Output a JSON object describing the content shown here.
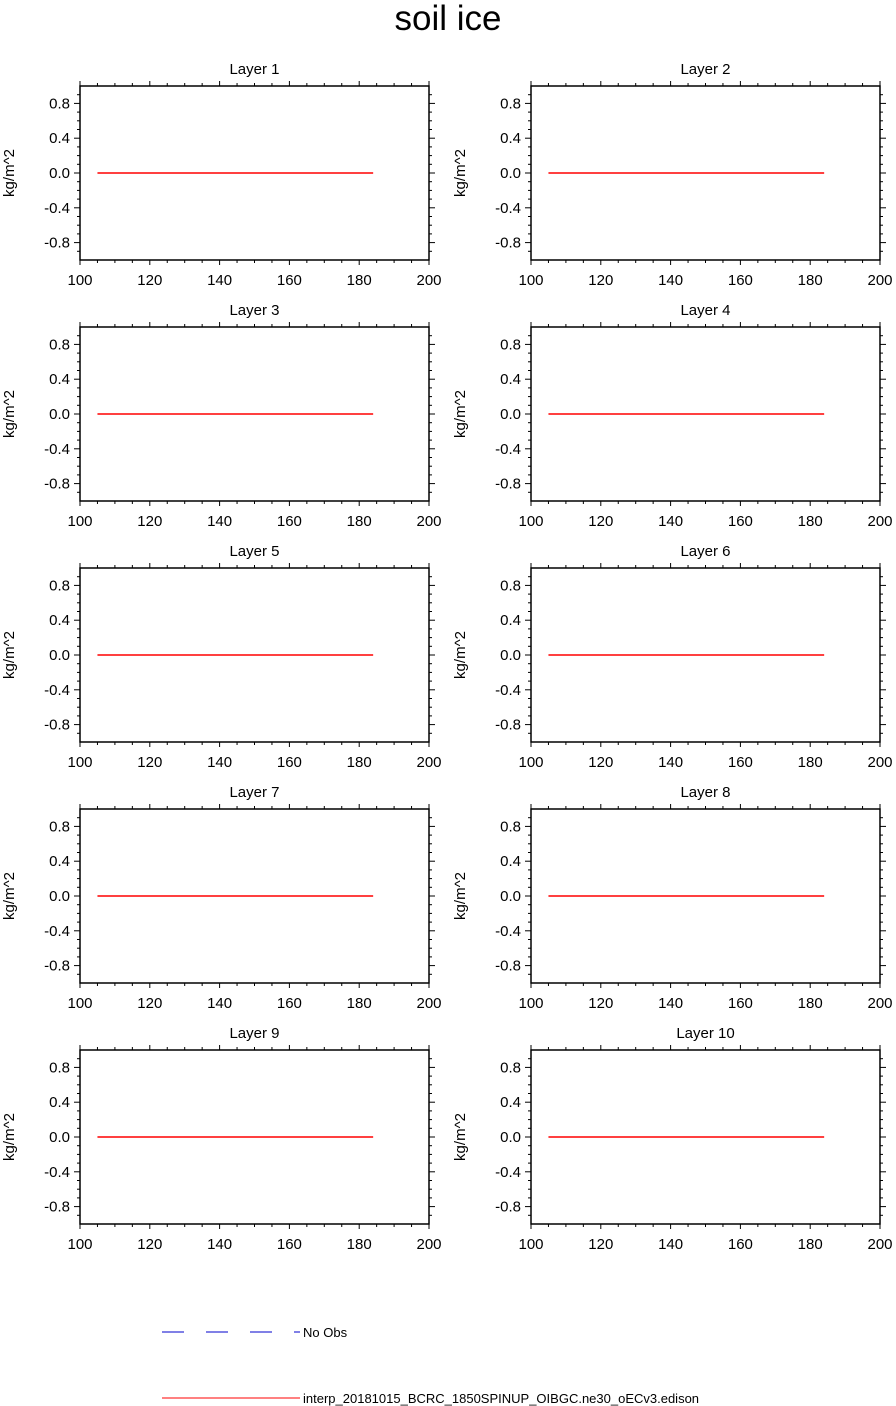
{
  "title": "soil ice",
  "colors": {
    "model_line": "#ff0000",
    "obs_line": "#0000cc",
    "axis": "#000000"
  },
  "chart_data": [
    {
      "type": "line",
      "title": "Layer 1",
      "ylabel": "kg/m^2",
      "xlim": [
        100,
        200
      ],
      "ylim": [
        -1,
        1
      ],
      "xticks": [
        "100",
        "120",
        "140",
        "160",
        "180",
        "200"
      ],
      "yticks": [
        "0.8",
        "0.4",
        "0.0",
        "-0.4",
        "-0.8"
      ],
      "series": [
        {
          "name": "interp_20181015_BCRC_1850SPINUP_OIBGC.ne30_oECv3.edison",
          "x": [
            105,
            184
          ],
          "y": [
            0,
            0
          ]
        }
      ]
    },
    {
      "type": "line",
      "title": "Layer 2",
      "ylabel": "kg/m^2",
      "xlim": [
        100,
        200
      ],
      "ylim": [
        -1,
        1
      ],
      "xticks": [
        "100",
        "120",
        "140",
        "160",
        "180",
        "200"
      ],
      "yticks": [
        "0.8",
        "0.4",
        "0.0",
        "-0.4",
        "-0.8"
      ],
      "series": [
        {
          "name": "interp_20181015_BCRC_1850SPINUP_OIBGC.ne30_oECv3.edison",
          "x": [
            105,
            184
          ],
          "y": [
            0,
            0
          ]
        }
      ]
    },
    {
      "type": "line",
      "title": "Layer 3",
      "ylabel": "kg/m^2",
      "xlim": [
        100,
        200
      ],
      "ylim": [
        -1,
        1
      ],
      "xticks": [
        "100",
        "120",
        "140",
        "160",
        "180",
        "200"
      ],
      "yticks": [
        "0.8",
        "0.4",
        "0.0",
        "-0.4",
        "-0.8"
      ],
      "series": [
        {
          "name": "interp_20181015_BCRC_1850SPINUP_OIBGC.ne30_oECv3.edison",
          "x": [
            105,
            184
          ],
          "y": [
            0,
            0
          ]
        }
      ]
    },
    {
      "type": "line",
      "title": "Layer 4",
      "ylabel": "kg/m^2",
      "xlim": [
        100,
        200
      ],
      "ylim": [
        -1,
        1
      ],
      "xticks": [
        "100",
        "120",
        "140",
        "160",
        "180",
        "200"
      ],
      "yticks": [
        "0.8",
        "0.4",
        "0.0",
        "-0.4",
        "-0.8"
      ],
      "series": [
        {
          "name": "interp_20181015_BCRC_1850SPINUP_OIBGC.ne30_oECv3.edison",
          "x": [
            105,
            184
          ],
          "y": [
            0,
            0
          ]
        }
      ]
    },
    {
      "type": "line",
      "title": "Layer 5",
      "ylabel": "kg/m^2",
      "xlim": [
        100,
        200
      ],
      "ylim": [
        -1,
        1
      ],
      "xticks": [
        "100",
        "120",
        "140",
        "160",
        "180",
        "200"
      ],
      "yticks": [
        "0.8",
        "0.4",
        "0.0",
        "-0.4",
        "-0.8"
      ],
      "series": [
        {
          "name": "interp_20181015_BCRC_1850SPINUP_OIBGC.ne30_oECv3.edison",
          "x": [
            105,
            184
          ],
          "y": [
            0,
            0
          ]
        }
      ]
    },
    {
      "type": "line",
      "title": "Layer 6",
      "ylabel": "kg/m^2",
      "xlim": [
        100,
        200
      ],
      "ylim": [
        -1,
        1
      ],
      "xticks": [
        "100",
        "120",
        "140",
        "160",
        "180",
        "200"
      ],
      "yticks": [
        "0.8",
        "0.4",
        "0.0",
        "-0.4",
        "-0.8"
      ],
      "series": [
        {
          "name": "interp_20181015_BCRC_1850SPINUP_OIBGC.ne30_oECv3.edison",
          "x": [
            105,
            184
          ],
          "y": [
            0,
            0
          ]
        }
      ]
    },
    {
      "type": "line",
      "title": "Layer 7",
      "ylabel": "kg/m^2",
      "xlim": [
        100,
        200
      ],
      "ylim": [
        -1,
        1
      ],
      "xticks": [
        "100",
        "120",
        "140",
        "160",
        "180",
        "200"
      ],
      "yticks": [
        "0.8",
        "0.4",
        "0.0",
        "-0.4",
        "-0.8"
      ],
      "series": [
        {
          "name": "interp_20181015_BCRC_1850SPINUP_OIBGC.ne30_oECv3.edison",
          "x": [
            105,
            184
          ],
          "y": [
            0,
            0
          ]
        }
      ]
    },
    {
      "type": "line",
      "title": "Layer 8",
      "ylabel": "kg/m^2",
      "xlim": [
        100,
        200
      ],
      "ylim": [
        -1,
        1
      ],
      "xticks": [
        "100",
        "120",
        "140",
        "160",
        "180",
        "200"
      ],
      "yticks": [
        "0.8",
        "0.4",
        "0.0",
        "-0.4",
        "-0.8"
      ],
      "series": [
        {
          "name": "interp_20181015_BCRC_1850SPINUP_OIBGC.ne30_oECv3.edison",
          "x": [
            105,
            184
          ],
          "y": [
            0,
            0
          ]
        }
      ]
    },
    {
      "type": "line",
      "title": "Layer 9",
      "ylabel": "kg/m^2",
      "xlim": [
        100,
        200
      ],
      "ylim": [
        -1,
        1
      ],
      "xticks": [
        "100",
        "120",
        "140",
        "160",
        "180",
        "200"
      ],
      "yticks": [
        "0.8",
        "0.4",
        "0.0",
        "-0.4",
        "-0.8"
      ],
      "series": [
        {
          "name": "interp_20181015_BCRC_1850SPINUP_OIBGC.ne30_oECv3.edison",
          "x": [
            105,
            184
          ],
          "y": [
            0,
            0
          ]
        }
      ]
    },
    {
      "type": "line",
      "title": "Layer 10",
      "ylabel": "kg/m^2",
      "xlim": [
        100,
        200
      ],
      "ylim": [
        -1,
        1
      ],
      "xticks": [
        "100",
        "120",
        "140",
        "160",
        "180",
        "200"
      ],
      "yticks": [
        "0.8",
        "0.4",
        "0.0",
        "-0.4",
        "-0.8"
      ],
      "series": [
        {
          "name": "interp_20181015_BCRC_1850SPINUP_OIBGC.ne30_oECv3.edison",
          "x": [
            105,
            184
          ],
          "y": [
            0,
            0
          ]
        }
      ]
    }
  ],
  "legend": [
    {
      "label": "No Obs",
      "style": "dashed",
      "color": "#0000cc"
    },
    {
      "label": "interp_20181015_BCRC_1850SPINUP_OIBGC.ne30_oECv3.edison",
      "style": "solid",
      "color": "#ff0000"
    }
  ]
}
